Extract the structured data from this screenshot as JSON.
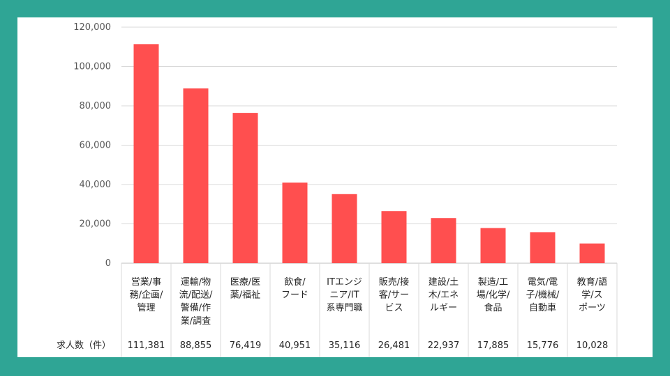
{
  "chart_data": {
    "type": "bar",
    "categories": [
      [
        "営業/事",
        "務/企画/",
        "管理"
      ],
      [
        "運輸/物",
        "流/配送/",
        "警備/作",
        "業/調査"
      ],
      [
        "医療/医",
        "薬/福祉"
      ],
      [
        "飲食/",
        "フード"
      ],
      [
        "ITエンジ",
        "ニア/IT",
        "系専門職"
      ],
      [
        "販売/接",
        "客/サー",
        "ビス"
      ],
      [
        "建設/土",
        "木/エネ",
        "ルギー"
      ],
      [
        "製造/工",
        "場/化学/",
        "食品"
      ],
      [
        "電気/電",
        "子/機械/",
        "自動車"
      ],
      [
        "教育/語",
        "学/ス",
        "ポーツ"
      ]
    ],
    "values": [
      111381,
      88855,
      76419,
      40951,
      35116,
      26481,
      22937,
      17885,
      15776,
      10028
    ],
    "value_labels": [
      "111,381",
      "88,855",
      "76,419",
      "40,951",
      "35,116",
      "26,481",
      "22,937",
      "17,885",
      "15,776",
      "10,028"
    ],
    "table_row_label": "求人数（件）",
    "ylim": [
      0,
      120000
    ],
    "yticks": [
      0,
      20000,
      40000,
      60000,
      80000,
      100000,
      120000
    ],
    "ytick_labels": [
      "0",
      "20,000",
      "40,000",
      "60,000",
      "80,000",
      "100,000",
      "120,000"
    ],
    "grid": true,
    "bar_color": "#ff4f4f",
    "frame_color": "#2fa595"
  }
}
